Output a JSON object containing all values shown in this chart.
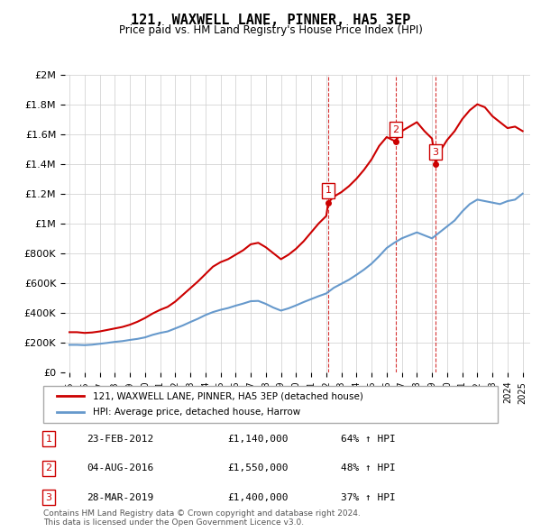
{
  "title": "121, WAXWELL LANE, PINNER, HA5 3EP",
  "subtitle": "Price paid vs. HM Land Registry's House Price Index (HPI)",
  "ylabel": "",
  "xlabel": "",
  "legend_line1": "121, WAXWELL LANE, PINNER, HA5 3EP (detached house)",
  "legend_line2": "HPI: Average price, detached house, Harrow",
  "red_color": "#cc0000",
  "blue_color": "#6699cc",
  "transactions": [
    {
      "num": 1,
      "date": "23-FEB-2012",
      "price": 1140000,
      "hpi_pct": "64% ↑ HPI",
      "year": 2012.13
    },
    {
      "num": 2,
      "date": "04-AUG-2016",
      "price": 1550000,
      "hpi_pct": "48% ↑ HPI",
      "year": 2016.59
    },
    {
      "num": 3,
      "date": "28-MAR-2019",
      "price": 1400000,
      "hpi_pct": "37% ↑ HPI",
      "year": 2019.24
    }
  ],
  "footnote": "Contains HM Land Registry data © Crown copyright and database right 2024.\nThis data is licensed under the Open Government Licence v3.0.",
  "ylim": [
    0,
    2000000
  ],
  "xlim_start": 1995,
  "xlim_end": 2025.5,
  "red_line": {
    "x": [
      1995.0,
      1995.5,
      1996.0,
      1996.5,
      1997.0,
      1997.5,
      1998.0,
      1998.5,
      1999.0,
      1999.5,
      2000.0,
      2000.5,
      2001.0,
      2001.5,
      2002.0,
      2002.5,
      2003.0,
      2003.5,
      2004.0,
      2004.5,
      2005.0,
      2005.5,
      2006.0,
      2006.5,
      2007.0,
      2007.5,
      2008.0,
      2008.5,
      2009.0,
      2009.5,
      2010.0,
      2010.5,
      2011.0,
      2011.5,
      2012.0,
      2012.13,
      2012.5,
      2013.0,
      2013.5,
      2014.0,
      2014.5,
      2015.0,
      2015.5,
      2016.0,
      2016.59,
      2017.0,
      2017.5,
      2018.0,
      2018.5,
      2019.0,
      2019.24,
      2019.5,
      2020.0,
      2020.5,
      2021.0,
      2021.5,
      2022.0,
      2022.5,
      2023.0,
      2023.5,
      2024.0,
      2024.5,
      2025.0
    ],
    "y": [
      270000,
      270000,
      265000,
      268000,
      275000,
      285000,
      295000,
      305000,
      320000,
      340000,
      365000,
      395000,
      420000,
      440000,
      475000,
      520000,
      565000,
      610000,
      660000,
      710000,
      740000,
      760000,
      790000,
      820000,
      860000,
      870000,
      840000,
      800000,
      760000,
      790000,
      830000,
      880000,
      940000,
      1000000,
      1050000,
      1140000,
      1180000,
      1210000,
      1250000,
      1300000,
      1360000,
      1430000,
      1520000,
      1580000,
      1550000,
      1620000,
      1650000,
      1680000,
      1620000,
      1570000,
      1400000,
      1480000,
      1560000,
      1620000,
      1700000,
      1760000,
      1800000,
      1780000,
      1720000,
      1680000,
      1640000,
      1650000,
      1620000
    ]
  },
  "blue_line": {
    "x": [
      1995.0,
      1995.5,
      1996.0,
      1996.5,
      1997.0,
      1997.5,
      1998.0,
      1998.5,
      1999.0,
      1999.5,
      2000.0,
      2000.5,
      2001.0,
      2001.5,
      2002.0,
      2002.5,
      2003.0,
      2003.5,
      2004.0,
      2004.5,
      2005.0,
      2005.5,
      2006.0,
      2006.5,
      2007.0,
      2007.5,
      2008.0,
      2008.5,
      2009.0,
      2009.5,
      2010.0,
      2010.5,
      2011.0,
      2011.5,
      2012.0,
      2012.5,
      2013.0,
      2013.5,
      2014.0,
      2014.5,
      2015.0,
      2015.5,
      2016.0,
      2016.5,
      2017.0,
      2017.5,
      2018.0,
      2018.5,
      2019.0,
      2019.5,
      2020.0,
      2020.5,
      2021.0,
      2021.5,
      2022.0,
      2022.5,
      2023.0,
      2023.5,
      2024.0,
      2024.5,
      2025.0
    ],
    "y": [
      185000,
      185000,
      183000,
      186000,
      192000,
      198000,
      205000,
      210000,
      218000,
      225000,
      235000,
      252000,
      265000,
      275000,
      295000,
      315000,
      338000,
      360000,
      385000,
      405000,
      420000,
      432000,
      448000,
      462000,
      478000,
      480000,
      460000,
      435000,
      415000,
      430000,
      450000,
      472000,
      492000,
      512000,
      530000,
      568000,
      595000,
      622000,
      655000,
      690000,
      730000,
      780000,
      835000,
      870000,
      900000,
      920000,
      940000,
      920000,
      900000,
      940000,
      980000,
      1020000,
      1080000,
      1130000,
      1160000,
      1150000,
      1140000,
      1130000,
      1150000,
      1160000,
      1200000
    ]
  }
}
